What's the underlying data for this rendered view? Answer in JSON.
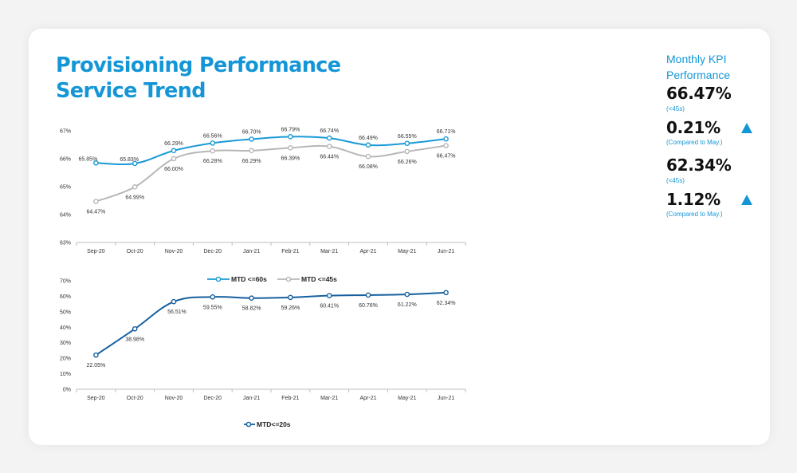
{
  "title_line1": "Provisioning Performance",
  "title_line2": "Service Trend",
  "kpi": {
    "heading": "Monthly KPI Performance",
    "items": [
      {
        "value": "66.47%",
        "sub": "(<45s)",
        "arrow": false
      },
      {
        "value": "0.21%",
        "sub": "(Compared to May.)",
        "arrow": true
      },
      {
        "value": "62.34%",
        "sub": "(<45s)",
        "arrow": false
      },
      {
        "value": "1.12%",
        "sub": "(Compared to May.)",
        "arrow": true
      }
    ]
  },
  "chart_data": [
    {
      "type": "line",
      "categories": [
        "Sep-20",
        "Oct-20",
        "Nov-20",
        "Dec-20",
        "Jan-21",
        "Feb-21",
        "Mar-21",
        "Apr-21",
        "May-21",
        "Jun-21"
      ],
      "yticks": [
        "63%",
        "64%",
        "65%",
        "66%",
        "67%"
      ],
      "ylim": [
        63,
        67
      ],
      "series": [
        {
          "name": "MTD <=60s",
          "color": "#1a9ad6",
          "values": [
            65.85,
            65.83,
            66.29,
            66.56,
            66.7,
            66.79,
            66.74,
            66.49,
            66.55,
            66.71
          ],
          "labels": [
            "65.85%",
            "65.83%",
            "66.29%",
            "66.56%",
            "66.70%",
            "66.79%",
            "66.74%",
            "66.49%",
            "66.55%",
            "66.71%"
          ]
        },
        {
          "name": "MTD <=45s",
          "color": "#b7b7b7",
          "values": [
            64.47,
            64.99,
            66.0,
            66.28,
            66.29,
            66.39,
            66.44,
            66.08,
            66.26,
            66.47
          ],
          "labels": [
            "64.47%",
            "64.99%",
            "66.00%",
            "66.28%",
            "66.29%",
            "66.39%",
            "66.44%",
            "66.08%",
            "66.26%",
            "66.47%"
          ]
        }
      ],
      "legend": "bottom-center"
    },
    {
      "type": "line",
      "categories": [
        "Sep-20",
        "Oct-20",
        "Nov-20",
        "Dec-20",
        "Jan-21",
        "Feb-21",
        "Mar-21",
        "Apr-21",
        "May-21",
        "Jun-21"
      ],
      "yticks": [
        "0%",
        "10%",
        "20%",
        "30%",
        "40%",
        "50%",
        "60%",
        "70%"
      ],
      "ylim": [
        0,
        70
      ],
      "series": [
        {
          "name": "MTD<=20s",
          "color": "#17609f",
          "values": [
            22.05,
            38.98,
            56.51,
            59.55,
            58.82,
            59.26,
            60.41,
            60.76,
            61.22,
            62.34
          ],
          "labels": [
            "22.05%",
            "38.98%",
            "56.51%",
            "59.55%",
            "58.82%",
            "59.26%",
            "60.41%",
            "60.76%",
            "61.22%",
            "62.34%"
          ]
        }
      ],
      "legend": "bottom-center"
    }
  ]
}
